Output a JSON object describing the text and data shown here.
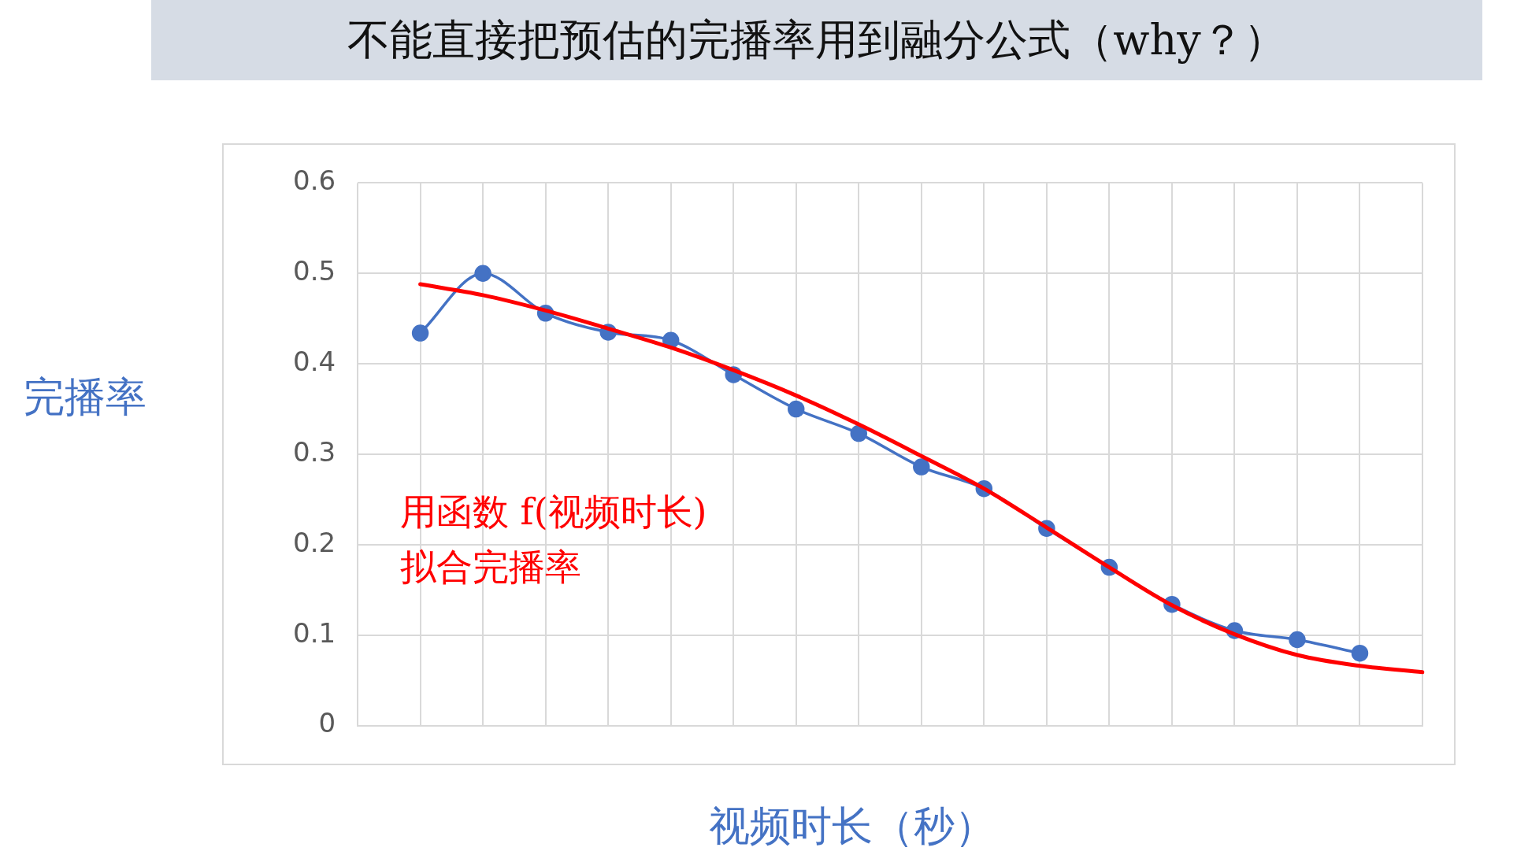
{
  "chart_data": {
    "type": "line",
    "title": "不能直接把预估的完播率用到融分公式（why？）",
    "xlabel": "视频时长（秒）",
    "ylabel": "完播率",
    "categories": [
      null,
      null,
      null,
      null,
      null,
      null,
      null,
      null,
      null,
      null,
      null,
      null,
      null,
      null,
      null,
      null,
      null,
      null
    ],
    "series": [
      {
        "color": "#4472c4",
        "marker": "circle",
        "values": [
          null,
          0.434,
          0.5,
          0.456,
          0.435,
          0.426,
          0.388,
          0.35,
          0.323,
          0.286,
          0.262,
          0.218,
          0.175,
          0.134,
          0.105,
          0.095,
          0.08,
          null
        ]
      },
      {
        "color": "#ff0000",
        "marker": "none",
        "values": [
          null,
          0.488,
          0.476,
          0.459,
          0.439,
          0.418,
          0.393,
          0.365,
          0.333,
          0.298,
          0.262,
          0.219,
          0.175,
          0.133,
          0.101,
          0.078,
          0.066,
          0.059
        ]
      }
    ],
    "ylim": [
      0,
      0.6
    ],
    "yticks": [
      0,
      0.1,
      0.2,
      0.3,
      0.4,
      0.5,
      0.6
    ],
    "grid": true,
    "annotations": [
      "用函数 f(视频时长)\n拟合完播率"
    ]
  }
}
